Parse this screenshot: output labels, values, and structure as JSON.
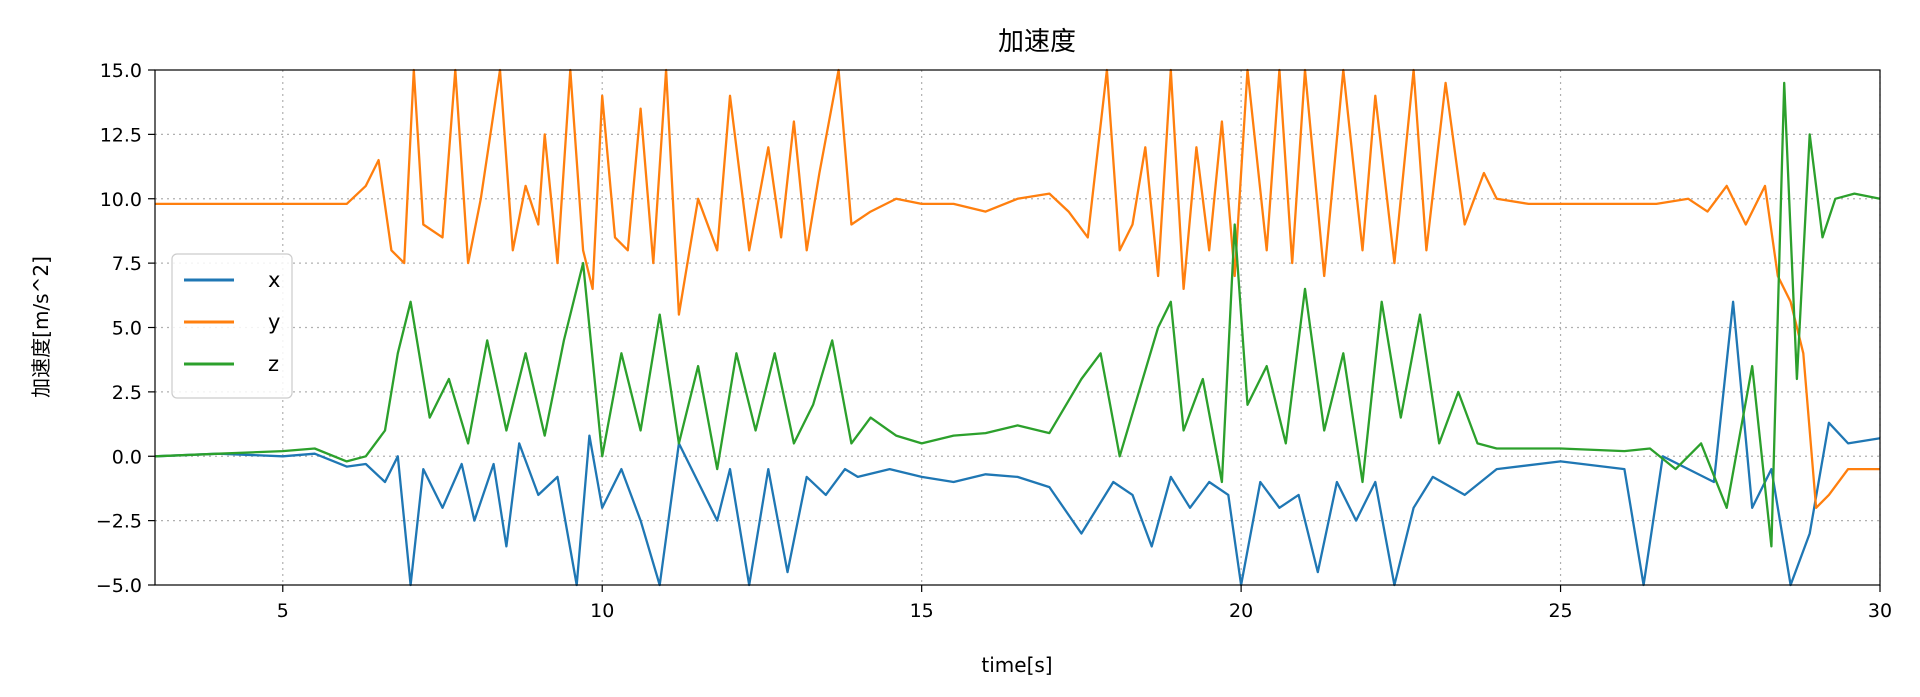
{
  "chart_data": {
    "type": "line",
    "title": "加速度",
    "xlabel": "time[s]",
    "ylabel": "加速度[m/s^2]",
    "xlim": [
      3,
      30
    ],
    "ylim": [
      -5.0,
      15.0
    ],
    "xticks": [
      5,
      10,
      15,
      20,
      25,
      30
    ],
    "xtick_labels": [
      "5",
      "10",
      "15",
      "20",
      "25",
      "30"
    ],
    "yticks": [
      -5.0,
      -2.5,
      0.0,
      2.5,
      5.0,
      7.5,
      10.0,
      12.5,
      15.0
    ],
    "ytick_labels": [
      "−5.0",
      "−2.5",
      "0.0",
      "2.5",
      "5.0",
      "7.5",
      "10.0",
      "12.5",
      "15.0"
    ],
    "grid": true,
    "legend_position": "center-left",
    "series": [
      {
        "name": "x",
        "color": "#1f77b4",
        "x": [
          3.0,
          4.0,
          5.0,
          5.5,
          6.0,
          6.3,
          6.6,
          6.8,
          7.0,
          7.2,
          7.5,
          7.8,
          8.0,
          8.3,
          8.5,
          8.7,
          9.0,
          9.3,
          9.6,
          9.8,
          10.0,
          10.3,
          10.6,
          10.9,
          11.2,
          11.5,
          11.8,
          12.0,
          12.3,
          12.6,
          12.9,
          13.2,
          13.5,
          13.8,
          14.0,
          14.5,
          15.0,
          15.5,
          16.0,
          16.5,
          17.0,
          17.5,
          18.0,
          18.3,
          18.6,
          18.9,
          19.2,
          19.5,
          19.8,
          20.0,
          20.3,
          20.6,
          20.9,
          21.2,
          21.5,
          21.8,
          22.1,
          22.4,
          22.7,
          23.0,
          23.5,
          24.0,
          25.0,
          26.0,
          26.3,
          26.6,
          27.0,
          27.4,
          27.7,
          28.0,
          28.3,
          28.6,
          28.9,
          29.2,
          29.5,
          30.0
        ],
        "y": [
          0.0,
          0.1,
          0.0,
          0.1,
          -0.4,
          -0.3,
          -1.0,
          0.0,
          -5.0,
          -0.5,
          -2.0,
          -0.3,
          -2.5,
          -0.3,
          -3.5,
          0.5,
          -1.5,
          -0.8,
          -5.0,
          0.8,
          -2.0,
          -0.5,
          -2.5,
          -5.0,
          0.5,
          -1.0,
          -2.5,
          -0.5,
          -5.0,
          -0.5,
          -4.5,
          -0.8,
          -1.5,
          -0.5,
          -0.8,
          -0.5,
          -0.8,
          -1.0,
          -0.7,
          -0.8,
          -1.2,
          -3.0,
          -1.0,
          -1.5,
          -3.5,
          -0.8,
          -2.0,
          -1.0,
          -1.5,
          -5.0,
          -1.0,
          -2.0,
          -1.5,
          -4.5,
          -1.0,
          -2.5,
          -1.0,
          -5.0,
          -2.0,
          -0.8,
          -1.5,
          -0.5,
          -0.2,
          -0.5,
          -5.0,
          0.0,
          -0.5,
          -1.0,
          6.0,
          -2.0,
          -0.5,
          -5.0,
          -3.0,
          1.3,
          0.5,
          0.7
        ]
      },
      {
        "name": "y",
        "color": "#ff7f0e",
        "x": [
          3.0,
          4.0,
          5.0,
          5.5,
          6.0,
          6.3,
          6.5,
          6.7,
          6.9,
          7.05,
          7.2,
          7.5,
          7.7,
          7.9,
          8.1,
          8.4,
          8.6,
          8.8,
          9.0,
          9.1,
          9.3,
          9.5,
          9.7,
          9.85,
          10.0,
          10.2,
          10.4,
          10.6,
          10.8,
          11.0,
          11.2,
          11.5,
          11.8,
          12.0,
          12.3,
          12.6,
          12.8,
          13.0,
          13.2,
          13.4,
          13.7,
          13.9,
          14.2,
          14.6,
          15.0,
          15.5,
          16.0,
          16.5,
          17.0,
          17.3,
          17.6,
          17.9,
          18.1,
          18.3,
          18.5,
          18.7,
          18.9,
          19.1,
          19.3,
          19.5,
          19.7,
          19.9,
          20.1,
          20.4,
          20.6,
          20.8,
          21.0,
          21.3,
          21.6,
          21.9,
          22.1,
          22.4,
          22.7,
          22.9,
          23.2,
          23.5,
          23.8,
          24.0,
          24.5,
          25.0,
          26.0,
          26.5,
          27.0,
          27.3,
          27.6,
          27.9,
          28.2,
          28.4,
          28.6,
          28.8,
          29.0,
          29.2,
          29.5,
          30.0
        ],
        "y": [
          9.8,
          9.8,
          9.8,
          9.8,
          9.8,
          10.5,
          11.5,
          8.0,
          7.5,
          15.0,
          9.0,
          8.5,
          15.0,
          7.5,
          10.0,
          15.0,
          8.0,
          10.5,
          9.0,
          12.5,
          7.5,
          15.0,
          8.0,
          6.5,
          14.0,
          8.5,
          8.0,
          13.5,
          7.5,
          15.0,
          5.5,
          10.0,
          8.0,
          14.0,
          8.0,
          12.0,
          8.5,
          13.0,
          8.0,
          11.0,
          15.0,
          9.0,
          9.5,
          10.0,
          9.8,
          9.8,
          9.5,
          10.0,
          10.2,
          9.5,
          8.5,
          15.0,
          8.0,
          9.0,
          12.0,
          7.0,
          15.0,
          6.5,
          12.0,
          8.0,
          13.0,
          7.0,
          15.0,
          8.0,
          15.0,
          7.5,
          15.0,
          7.0,
          15.0,
          8.0,
          14.0,
          7.5,
          15.0,
          8.0,
          14.5,
          9.0,
          11.0,
          10.0,
          9.8,
          9.8,
          9.8,
          9.8,
          10.0,
          9.5,
          10.5,
          9.0,
          10.5,
          7.0,
          6.0,
          4.0,
          -2.0,
          -1.5,
          -0.5,
          -0.5
        ]
      },
      {
        "name": "z",
        "color": "#2ca02c",
        "x": [
          3.0,
          4.0,
          5.0,
          5.5,
          6.0,
          6.3,
          6.6,
          6.8,
          7.0,
          7.3,
          7.6,
          7.9,
          8.2,
          8.5,
          8.8,
          9.1,
          9.4,
          9.7,
          10.0,
          10.3,
          10.6,
          10.9,
          11.2,
          11.5,
          11.8,
          12.1,
          12.4,
          12.7,
          13.0,
          13.3,
          13.6,
          13.9,
          14.2,
          14.6,
          15.0,
          15.5,
          16.0,
          16.5,
          17.0,
          17.5,
          17.8,
          18.1,
          18.4,
          18.7,
          18.9,
          19.1,
          19.4,
          19.7,
          19.9,
          20.1,
          20.4,
          20.7,
          21.0,
          21.3,
          21.6,
          21.9,
          22.2,
          22.5,
          22.8,
          23.1,
          23.4,
          23.7,
          24.0,
          24.5,
          25.0,
          26.0,
          26.4,
          26.8,
          27.2,
          27.6,
          28.0,
          28.3,
          28.5,
          28.7,
          28.9,
          29.1,
          29.3,
          29.6,
          30.0
        ],
        "y": [
          0.0,
          0.1,
          0.2,
          0.3,
          -0.2,
          0.0,
          1.0,
          4.0,
          6.0,
          1.5,
          3.0,
          0.5,
          4.5,
          1.0,
          4.0,
          0.8,
          4.5,
          7.5,
          0.0,
          4.0,
          1.0,
          5.5,
          0.5,
          3.5,
          -0.5,
          4.0,
          1.0,
          4.0,
          0.5,
          2.0,
          4.5,
          0.5,
          1.5,
          0.8,
          0.5,
          0.8,
          0.9,
          1.2,
          0.9,
          3.0,
          4.0,
          0.0,
          2.5,
          5.0,
          6.0,
          1.0,
          3.0,
          -1.0,
          9.0,
          2.0,
          3.5,
          0.5,
          6.5,
          1.0,
          4.0,
          -1.0,
          6.0,
          1.5,
          5.5,
          0.5,
          2.5,
          0.5,
          0.3,
          0.3,
          0.3,
          0.2,
          0.3,
          -0.5,
          0.5,
          -2.0,
          3.5,
          -3.5,
          14.5,
          3.0,
          12.5,
          8.5,
          10.0,
          10.2,
          10.0
        ]
      }
    ]
  }
}
